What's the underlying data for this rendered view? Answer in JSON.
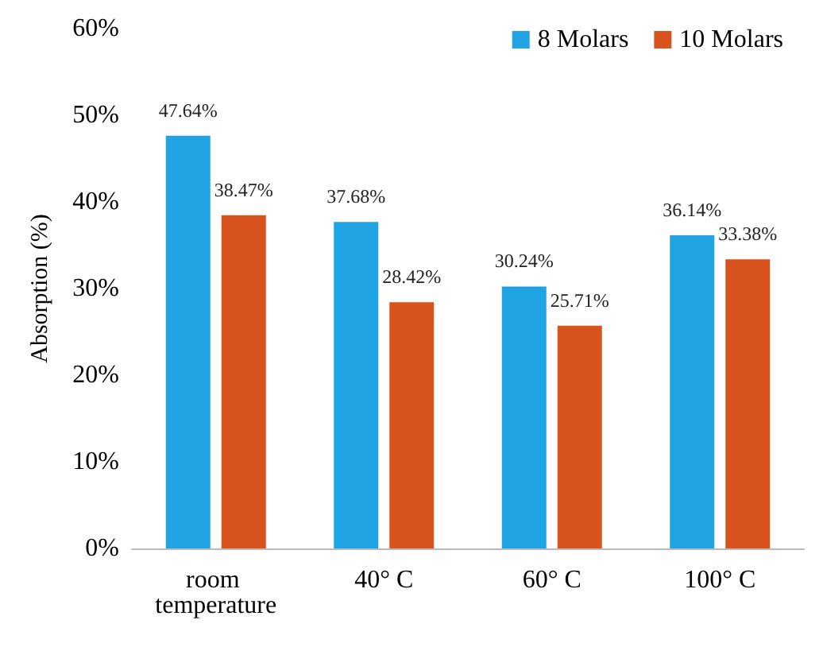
{
  "chart_data": {
    "type": "bar",
    "ylabel": "Absorption (%)",
    "categories": [
      "room temperature",
      "40° C",
      "60° C",
      "100° C"
    ],
    "series": [
      {
        "name": "8 Molars",
        "color": "#1fa3e3",
        "values": [
          47.64,
          37.68,
          30.24,
          36.14
        ],
        "value_labels": [
          "47.64%",
          "37.68%",
          "30.24%",
          "36.14%"
        ]
      },
      {
        "name": "10 Molars",
        "color": "#d9531e",
        "values": [
          38.47,
          28.42,
          25.71,
          33.38
        ],
        "value_labels": [
          "38.47%",
          "28.42%",
          "25.71%",
          "33.38%"
        ]
      }
    ],
    "ylim": [
      0,
      60
    ],
    "yticks": [
      {
        "value": 0,
        "label": "0%"
      },
      {
        "value": 10,
        "label": "10%"
      },
      {
        "value": 20,
        "label": "20%"
      },
      {
        "value": 30,
        "label": "30%"
      },
      {
        "value": 40,
        "label": "40%"
      },
      {
        "value": 50,
        "label": "50%"
      },
      {
        "value": 60,
        "label": "60%"
      }
    ],
    "grid": false,
    "legend": "top right"
  }
}
